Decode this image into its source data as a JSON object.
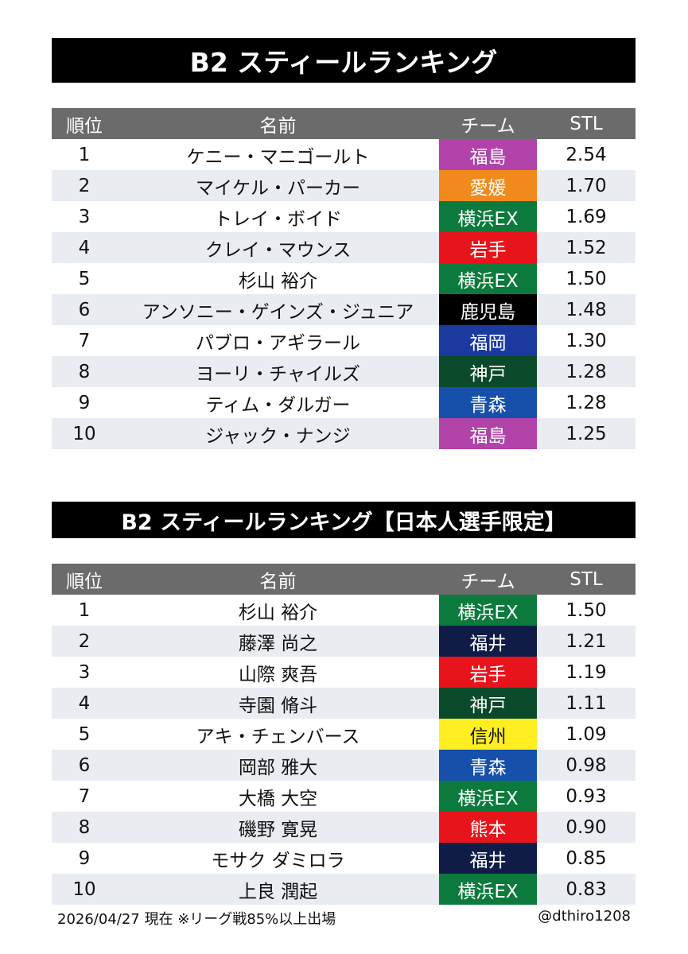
{
  "title1": "B2 スティールランキング",
  "title2": "B2 スティールランキング【日本人選手限定】",
  "headers": {
    "rank": "順位",
    "name": "名前",
    "team": "チーム",
    "stl": "STL"
  },
  "team_colors": {
    "福島": {
      "bg": "#b042a8",
      "fg": "#ffffff"
    },
    "愛媛": {
      "bg": "#f08a1c",
      "fg": "#ffffff"
    },
    "横浜EX": {
      "bg": "#0c7a3c",
      "fg": "#ffffff"
    },
    "岩手": {
      "bg": "#e8141c",
      "fg": "#ffffff"
    },
    "鹿児島": {
      "bg": "#000000",
      "fg": "#ffffff"
    },
    "福岡": {
      "bg": "#1a3aa0",
      "fg": "#ffffff"
    },
    "神戸": {
      "bg": "#0a4a2a",
      "fg": "#ffffff"
    },
    "青森": {
      "bg": "#1650aa",
      "fg": "#ffffff"
    },
    "福井": {
      "bg": "#101c48",
      "fg": "#ffffff"
    },
    "信州": {
      "bg": "#ffee22",
      "fg": "#111111"
    },
    "熊本": {
      "bg": "#e8141c",
      "fg": "#ffffff"
    }
  },
  "table1": [
    {
      "rank": "1",
      "name": "ケニー・マニゴールト",
      "team": "福島",
      "stl": "2.54"
    },
    {
      "rank": "2",
      "name": "マイケル・パーカー",
      "team": "愛媛",
      "stl": "1.70"
    },
    {
      "rank": "3",
      "name": "トレイ・ボイド",
      "team": "横浜EX",
      "stl": "1.69"
    },
    {
      "rank": "4",
      "name": "クレイ・マウンス",
      "team": "岩手",
      "stl": "1.52"
    },
    {
      "rank": "5",
      "name": "杉山 裕介",
      "team": "横浜EX",
      "stl": "1.50"
    },
    {
      "rank": "6",
      "name": "アンソニー・ゲインズ・ジュニア",
      "team": "鹿児島",
      "stl": "1.48"
    },
    {
      "rank": "7",
      "name": "パブロ・アギラール",
      "team": "福岡",
      "stl": "1.30"
    },
    {
      "rank": "8",
      "name": "ヨーリ・チャイルズ",
      "team": "神戸",
      "stl": "1.28"
    },
    {
      "rank": "9",
      "name": "ティム・ダルガー",
      "team": "青森",
      "stl": "1.28"
    },
    {
      "rank": "10",
      "name": "ジャック・ナンジ",
      "team": "福島",
      "stl": "1.25"
    }
  ],
  "table2": [
    {
      "rank": "1",
      "name": "杉山 裕介",
      "team": "横浜EX",
      "stl": "1.50"
    },
    {
      "rank": "2",
      "name": "藤澤 尚之",
      "team": "福井",
      "stl": "1.21"
    },
    {
      "rank": "3",
      "name": "山際 爽吾",
      "team": "岩手",
      "stl": "1.19"
    },
    {
      "rank": "4",
      "name": "寺園 脩斗",
      "team": "神戸",
      "stl": "1.11"
    },
    {
      "rank": "5",
      "name": "アキ・チェンバース",
      "team": "信州",
      "stl": "1.09"
    },
    {
      "rank": "6",
      "name": "岡部 雅大",
      "team": "青森",
      "stl": "0.98"
    },
    {
      "rank": "7",
      "name": "大橋 大空",
      "team": "横浜EX",
      "stl": "0.93"
    },
    {
      "rank": "8",
      "name": "磯野 寛晃",
      "team": "熊本",
      "stl": "0.90"
    },
    {
      "rank": "9",
      "name": "モサク ダミロラ",
      "team": "福井",
      "stl": "0.85"
    },
    {
      "rank": "10",
      "name": "上良 潤起",
      "team": "横浜EX",
      "stl": "0.83"
    }
  ],
  "footer": {
    "note": "2026/04/27 現在 ※リーグ戦85%以上出場",
    "handle": "@dthiro1208"
  }
}
